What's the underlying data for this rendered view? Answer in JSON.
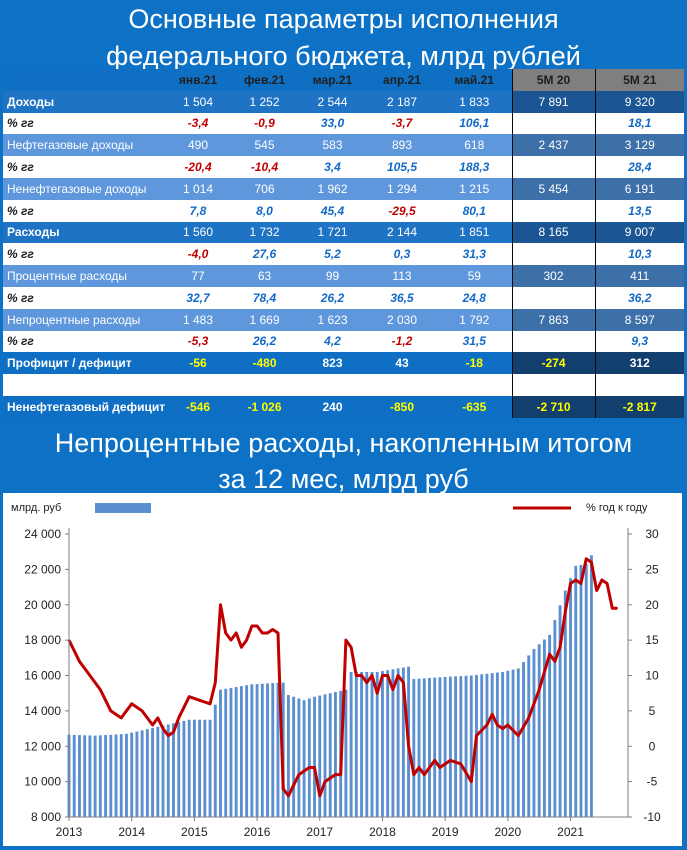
{
  "header": {
    "line1": "Основные параметры исполнения",
    "line2": "федерального бюджета, млрд рублей"
  },
  "table": {
    "columns": [
      "янв.21",
      "фев.21",
      "мар.21",
      "апр.21",
      "май.21",
      "5М 20",
      "5М 21"
    ],
    "rows": [
      {
        "label": "Доходы",
        "kind": "main",
        "values": [
          "1 504",
          "1 252",
          "2 544",
          "2 187",
          "1 833",
          "7 891",
          "9 320"
        ]
      },
      {
        "label": "% гг",
        "kind": "pct",
        "values": [
          "-3,4",
          "-0,9",
          "33,0",
          "-3,7",
          "106,1",
          "",
          "18,1"
        ]
      },
      {
        "label": "Нефтегазовые доходы",
        "kind": "sub",
        "values": [
          "490",
          "545",
          "583",
          "893",
          "618",
          "2 437",
          "3 129"
        ]
      },
      {
        "label": "% гг",
        "kind": "pct",
        "values": [
          "-20,4",
          "-10,4",
          "3,4",
          "105,5",
          "188,3",
          "",
          "28,4"
        ]
      },
      {
        "label": "Ненефтегазовые доходы",
        "kind": "sub",
        "values": [
          "1 014",
          "706",
          "1 962",
          "1 294",
          "1 215",
          "5 454",
          "6 191"
        ]
      },
      {
        "label": "% гг",
        "kind": "pct",
        "values": [
          "7,8",
          "8,0",
          "45,4",
          "-29,5",
          "80,1",
          "",
          "13,5"
        ]
      },
      {
        "label": "Расходы",
        "kind": "main",
        "values": [
          "1 560",
          "1 732",
          "1 721",
          "2 144",
          "1 851",
          "8 165",
          "9 007"
        ]
      },
      {
        "label": "% гг",
        "kind": "pct",
        "values": [
          "-4,0",
          "27,6",
          "5,2",
          "0,3",
          "31,3",
          "",
          "10,3"
        ]
      },
      {
        "label": "Процентные расходы",
        "kind": "sub",
        "values": [
          "77",
          "63",
          "99",
          "113",
          "59",
          "302",
          "411"
        ]
      },
      {
        "label": "% гг",
        "kind": "pct",
        "values": [
          "32,7",
          "78,4",
          "26,2",
          "36,5",
          "24,8",
          "",
          "36,2"
        ]
      },
      {
        "label": "Непроцентные расходы",
        "kind": "sub",
        "values": [
          "1 483",
          "1 669",
          "1 623",
          "2 030",
          "1 792",
          "7 863",
          "8 597"
        ]
      },
      {
        "label": "% гг",
        "kind": "pct",
        "values": [
          "-5,3",
          "26,2",
          "4,2",
          "-1,2",
          "31,5",
          "",
          "9,3"
        ]
      },
      {
        "label": "Профицит / дефицит",
        "kind": "res",
        "values": [
          "-56",
          "-480",
          "823",
          "43",
          "-18",
          "-274",
          "312"
        ]
      },
      {
        "label": "",
        "kind": "blank",
        "values": [
          "",
          "",
          "",
          "",
          "",
          "",
          ""
        ]
      },
      {
        "label": "Ненефтегазовый дефицит",
        "kind": "res",
        "values": [
          "-546",
          "-1 026",
          "240",
          "-850",
          "-635",
          "-2 710",
          "-2 817"
        ]
      }
    ],
    "colors": {
      "negative": "#c00000",
      "positive_pct": "#1269c7",
      "highlight": "#ffff00"
    }
  },
  "chart_title": {
    "line1": "Непроцентные расходы, накопленным итогом",
    "line2": "за 12 мес, млрд руб"
  },
  "chart_data": {
    "type": "bar+line",
    "title": "Непроцентные расходы, накопленным итогом за 12 мес, млрд руб",
    "legend": [
      {
        "label": "млрд. руб",
        "type": "bar",
        "color": "#5b8fd0",
        "axis": "left"
      },
      {
        "label": "% год к году",
        "type": "line",
        "color": "#c00000",
        "axis": "right"
      }
    ],
    "legend_placement": "top",
    "y_left": {
      "label": "млрд. руб",
      "min": 8000,
      "max": 24000,
      "ticks": [
        8000,
        10000,
        12000,
        14000,
        16000,
        18000,
        20000,
        22000,
        24000
      ],
      "tick_labels": [
        "8 000",
        "10 000",
        "12 000",
        "14 000",
        "16 000",
        "18 000",
        "20 000",
        "22 000",
        "24 000"
      ]
    },
    "y_right": {
      "label": "% год к году",
      "min": -10,
      "max": 30,
      "ticks": [
        -10,
        -5,
        0,
        5,
        10,
        15,
        20,
        25,
        30
      ]
    },
    "x_labels": [
      "2013",
      "2014",
      "2015",
      "2016",
      "2017",
      "2018",
      "2019",
      "2020",
      "2021"
    ],
    "x_start": "2013-01",
    "x_end": "2021-05",
    "grid": false,
    "bars_knots": [
      [
        "2013-01",
        12650
      ],
      [
        "2013-06",
        12600
      ],
      [
        "2013-12",
        12700
      ],
      [
        "2014-06",
        13100
      ],
      [
        "2014-12",
        13500
      ],
      [
        "2015-04",
        13500
      ],
      [
        "2015-06",
        15200
      ],
      [
        "2015-12",
        15500
      ],
      [
        "2016-06",
        15600
      ],
      [
        "2016-07",
        14900
      ],
      [
        "2016-10",
        14600
      ],
      [
        "2016-12",
        14800
      ],
      [
        "2017-06",
        15200
      ],
      [
        "2017-07",
        16200
      ],
      [
        "2017-12",
        16200
      ],
      [
        "2018-06",
        16500
      ],
      [
        "2018-07",
        15800
      ],
      [
        "2018-12",
        15900
      ],
      [
        "2019-06",
        16000
      ],
      [
        "2019-12",
        16200
      ],
      [
        "2020-03",
        16400
      ],
      [
        "2020-06",
        17500
      ],
      [
        "2020-09",
        18300
      ],
      [
        "2020-12",
        20800
      ],
      [
        "2021-02",
        22200
      ],
      [
        "2021-04",
        22300
      ],
      [
        "2021-05",
        22800
      ]
    ],
    "line": {
      "name": "% год к году",
      "points": [
        [
          "2013-01",
          15
        ],
        [
          "2013-03",
          12
        ],
        [
          "2013-05",
          10
        ],
        [
          "2013-07",
          8
        ],
        [
          "2013-09",
          5
        ],
        [
          "2013-11",
          4
        ],
        [
          "2014-01",
          6
        ],
        [
          "2014-03",
          5
        ],
        [
          "2014-05",
          3
        ],
        [
          "2014-06",
          4
        ],
        [
          "2014-07",
          2.5
        ],
        [
          "2014-08",
          1.5
        ],
        [
          "2014-09",
          2
        ],
        [
          "2014-10",
          4
        ],
        [
          "2014-12",
          7
        ],
        [
          "2015-02",
          6.5
        ],
        [
          "2015-04",
          6
        ],
        [
          "2015-05",
          9
        ],
        [
          "2015-06",
          20
        ],
        [
          "2015-07",
          16
        ],
        [
          "2015-08",
          15
        ],
        [
          "2015-09",
          16
        ],
        [
          "2015-10",
          14
        ],
        [
          "2015-11",
          15
        ],
        [
          "2015-12",
          17
        ],
        [
          "2016-01",
          17
        ],
        [
          "2016-02",
          16
        ],
        [
          "2016-03",
          16
        ],
        [
          "2016-04",
          16.5
        ],
        [
          "2016-05",
          16
        ],
        [
          "2016-06",
          -6
        ],
        [
          "2016-07",
          -7
        ],
        [
          "2016-09",
          -4
        ],
        [
          "2016-11",
          -3
        ],
        [
          "2016-12",
          -3
        ],
        [
          "2017-01",
          -7
        ],
        [
          "2017-02",
          -5
        ],
        [
          "2017-04",
          -4
        ],
        [
          "2017-05",
          -4
        ],
        [
          "2017-06",
          15
        ],
        [
          "2017-07",
          14
        ],
        [
          "2017-08",
          10
        ],
        [
          "2017-09",
          10
        ],
        [
          "2017-10",
          9
        ],
        [
          "2017-11",
          10
        ],
        [
          "2017-12",
          7.5
        ],
        [
          "2018-01",
          10
        ],
        [
          "2018-02",
          10
        ],
        [
          "2018-03",
          8
        ],
        [
          "2018-04",
          10
        ],
        [
          "2018-05",
          9
        ],
        [
          "2018-06",
          0
        ],
        [
          "2018-07",
          -4
        ],
        [
          "2018-08",
          -3
        ],
        [
          "2018-09",
          -4
        ],
        [
          "2018-10",
          -3
        ],
        [
          "2018-11",
          -2
        ],
        [
          "2018-12",
          -3
        ],
        [
          "2019-02",
          -2
        ],
        [
          "2019-04",
          -2.5
        ],
        [
          "2019-06",
          -5
        ],
        [
          "2019-07",
          1.5
        ],
        [
          "2019-09",
          3
        ],
        [
          "2019-10",
          4.5
        ],
        [
          "2019-11",
          3
        ],
        [
          "2019-12",
          2.5
        ],
        [
          "2020-01",
          3
        ],
        [
          "2020-03",
          1.5
        ],
        [
          "2020-05",
          4
        ],
        [
          "2020-07",
          8
        ],
        [
          "2020-09",
          13
        ],
        [
          "2020-10",
          12
        ],
        [
          "2020-11",
          14
        ],
        [
          "2020-12",
          19
        ],
        [
          "2021-01",
          23
        ],
        [
          "2021-02",
          23.5
        ],
        [
          "2021-03",
          23
        ],
        [
          "2021-04",
          26.5
        ],
        [
          "2021-05",
          26
        ],
        [
          "2021-06",
          22
        ],
        [
          "2021-07",
          23.5
        ],
        [
          "2021-08",
          23
        ],
        [
          "2021-09",
          19.5
        ],
        [
          "2021-10",
          19.5
        ]
      ]
    }
  }
}
